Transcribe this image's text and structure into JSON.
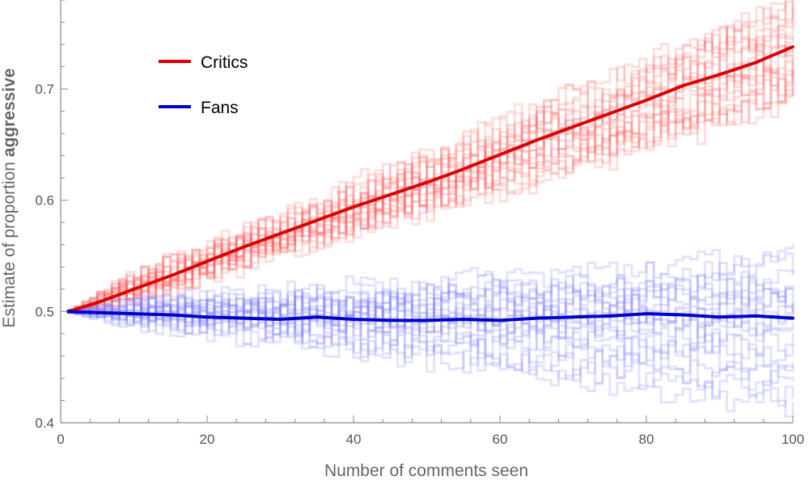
{
  "chart_data": {
    "type": "line",
    "xlabel": "Number of comments seen",
    "ylabel_prefix": "Estimate of proportion ",
    "ylabel_emphasis": "aggressive",
    "xlim": [
      0,
      100
    ],
    "ylim": [
      0.4,
      0.78
    ],
    "x_ticks": [
      0,
      20,
      40,
      60,
      80,
      100
    ],
    "y_ticks": [
      0.4,
      0.5,
      0.6,
      0.7
    ],
    "y_tick_labels": [
      "0.4",
      "0.5",
      "0.6",
      "0.7"
    ],
    "grid": false,
    "legend_position": "top-left",
    "series": [
      {
        "name": "Critics",
        "color": "#dd0000",
        "x": [
          1,
          5,
          10,
          15,
          20,
          25,
          30,
          35,
          40,
          45,
          50,
          55,
          60,
          65,
          70,
          75,
          80,
          85,
          90,
          95,
          100
        ],
        "values": [
          0.5,
          0.508,
          0.52,
          0.532,
          0.545,
          0.558,
          0.57,
          0.582,
          0.594,
          0.605,
          0.616,
          0.628,
          0.641,
          0.654,
          0.666,
          0.678,
          0.69,
          0.703,
          0.713,
          0.724,
          0.738
        ]
      },
      {
        "name": "Fans",
        "color": "#0000cc",
        "x": [
          1,
          5,
          10,
          15,
          20,
          25,
          30,
          35,
          40,
          45,
          50,
          55,
          60,
          65,
          70,
          75,
          80,
          85,
          90,
          95,
          100
        ],
        "values": [
          0.5,
          0.499,
          0.498,
          0.497,
          0.495,
          0.494,
          0.493,
          0.495,
          0.493,
          0.492,
          0.492,
          0.493,
          0.492,
          0.494,
          0.495,
          0.496,
          0.498,
          0.497,
          0.495,
          0.496,
          0.494
        ]
      }
    ],
    "sample_trajectories": {
      "critics_color": "#ff6b6b",
      "fans_color": "#8080ff",
      "critics_final_values": [
        0.69,
        0.695,
        0.7,
        0.705,
        0.708,
        0.71,
        0.715,
        0.72,
        0.725,
        0.73,
        0.735,
        0.74,
        0.745,
        0.75,
        0.755,
        0.76,
        0.765,
        0.77,
        0.775,
        0.78
      ],
      "fans_final_values": [
        0.415,
        0.425,
        0.435,
        0.445,
        0.455,
        0.465,
        0.47,
        0.48,
        0.485,
        0.49,
        0.495,
        0.5,
        0.505,
        0.51,
        0.515,
        0.52,
        0.525,
        0.53,
        0.54,
        0.55
      ]
    }
  }
}
